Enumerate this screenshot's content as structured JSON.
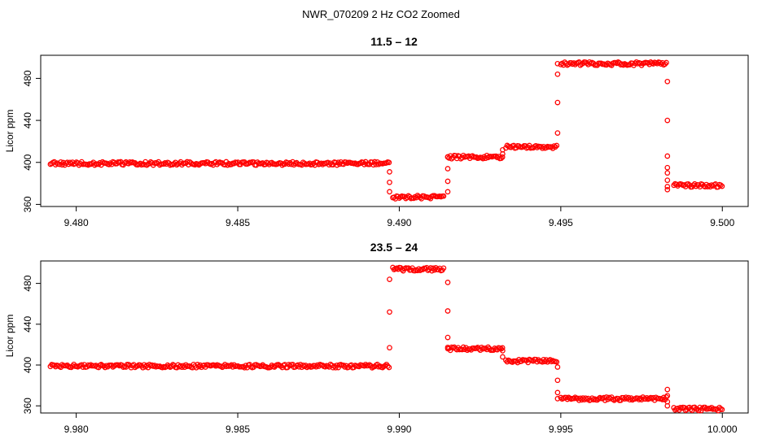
{
  "figure_title": "NWR_070209  2 Hz CO2 Zoomed",
  "colors": {
    "points": "#ff0000",
    "axes": "#000000",
    "background": "#ffffff"
  },
  "chart_data": [
    {
      "type": "scatter",
      "title": "11.5 – 12",
      "xlabel": "",
      "ylabel": "Licor ppm",
      "xlim": [
        9.4789,
        9.5008
      ],
      "ylim": [
        358,
        502
      ],
      "xticks": [
        9.48,
        9.485,
        9.49,
        9.495,
        9.5
      ],
      "xtick_labels": [
        "9.480",
        "9.485",
        "9.490",
        "9.495",
        "9.500"
      ],
      "yticks": [
        360,
        400,
        440,
        480
      ],
      "ytick_labels": [
        "360",
        "400",
        "440",
        "480"
      ],
      "grid": false,
      "marker": "open-circle",
      "segments": [
        {
          "x0": 9.4792,
          "x1": 9.4897,
          "y": 399
        },
        {
          "x0": 9.4898,
          "x1": 9.4914,
          "y": 367
        },
        {
          "x0": 9.4915,
          "x1": 9.4932,
          "y": 405
        },
        {
          "x0": 9.4933,
          "x1": 9.4949,
          "y": 415
        },
        {
          "x0": 9.495,
          "x1": 9.4983,
          "y": 494
        },
        {
          "x0": 9.4985,
          "x1": 9.5,
          "y": 378
        }
      ],
      "transitions": [
        {
          "x": 9.4897,
          "values": [
            391,
            381,
            372
          ]
        },
        {
          "x": 9.4915,
          "values": [
            372,
            382,
            394,
            405
          ]
        },
        {
          "x": 9.4932,
          "values": [
            408,
            412
          ]
        },
        {
          "x": 9.4949,
          "values": [
            428,
            457,
            484,
            494
          ]
        },
        {
          "x": 9.4983,
          "values": [
            477,
            440,
            406,
            395,
            390,
            383,
            377,
            374
          ]
        }
      ]
    },
    {
      "type": "scatter",
      "title": "23.5 – 24",
      "xlabel": "",
      "ylabel": "Licor ppm",
      "xlim": [
        9.9789,
        10.0008
      ],
      "ylim": [
        353,
        502
      ],
      "xticks": [
        9.98,
        9.985,
        9.99,
        9.995,
        10.0
      ],
      "xtick_labels": [
        "9.980",
        "9.985",
        "9.990",
        "9.995",
        "10.000"
      ],
      "yticks": [
        360,
        400,
        440,
        480
      ],
      "ytick_labels": [
        "360",
        "400",
        "440",
        "480"
      ],
      "grid": false,
      "marker": "open-circle",
      "segments": [
        {
          "x0": 9.9792,
          "x1": 9.9897,
          "y": 399
        },
        {
          "x0": 9.9898,
          "x1": 9.9914,
          "y": 494
        },
        {
          "x0": 9.9915,
          "x1": 9.9932,
          "y": 416
        },
        {
          "x0": 9.9933,
          "x1": 9.9949,
          "y": 404
        },
        {
          "x0": 9.995,
          "x1": 9.9983,
          "y": 367
        },
        {
          "x0": 9.9985,
          "x1": 10.0,
          "y": 357
        }
      ],
      "transitions": [
        {
          "x": 9.9897,
          "values": [
            417,
            452,
            484
          ]
        },
        {
          "x": 9.9915,
          "values": [
            481,
            453,
            427,
            416
          ]
        },
        {
          "x": 9.9932,
          "values": [
            414,
            408
          ]
        },
        {
          "x": 9.9949,
          "values": [
            398,
            385,
            373,
            367
          ]
        },
        {
          "x": 9.9983,
          "values": [
            376,
            370,
            364,
            360
          ]
        }
      ]
    }
  ]
}
